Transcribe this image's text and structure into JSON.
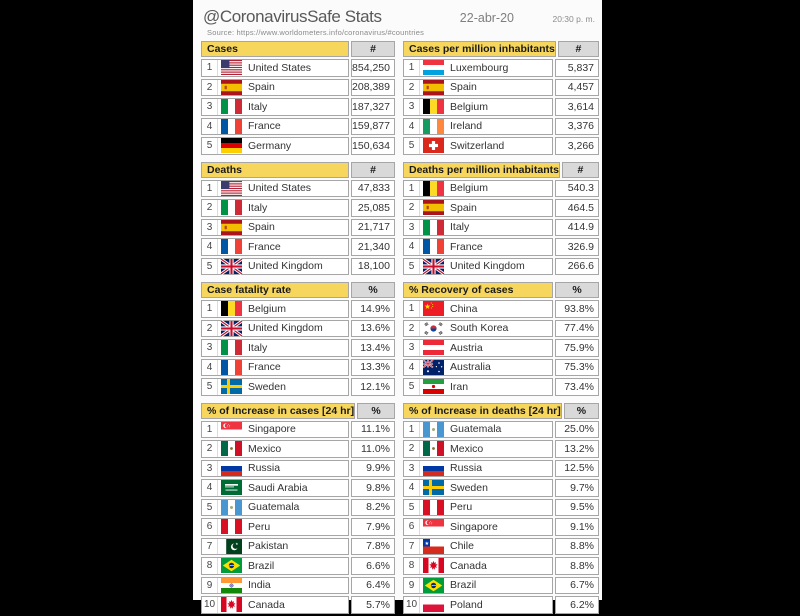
{
  "header": {
    "title": "@CoronavirusSafe Stats",
    "date": "22-abr-20",
    "time": "20:30 p. m.",
    "source": "Source:  https://www.worldometers.info/coronavirus/#countries"
  },
  "colors": {
    "header_yellow": "#F6D65C",
    "header_gray": "#D9D9D9",
    "cell_border": "#A6A6A6",
    "text": "#333333",
    "title_text": "#595959",
    "letterbox": "#000000",
    "page_bg": "#FBFBFB"
  },
  "chart_data": [
    {
      "type": "table",
      "title": "Cases",
      "value_header": "#",
      "columns": [
        "rank",
        "country",
        "value"
      ],
      "rows": [
        {
          "rank": "1",
          "flag": "us",
          "country": "United States",
          "value": "854,250"
        },
        {
          "rank": "2",
          "flag": "es",
          "country": "Spain",
          "value": "208,389"
        },
        {
          "rank": "3",
          "flag": "it",
          "country": "Italy",
          "value": "187,327"
        },
        {
          "rank": "4",
          "flag": "fr",
          "country": "France",
          "value": "159,877"
        },
        {
          "rank": "5",
          "flag": "de",
          "country": "Germany",
          "value": "150,634"
        }
      ]
    },
    {
      "type": "table",
      "title": "Cases per million inhabitants",
      "value_header": "#",
      "columns": [
        "rank",
        "country",
        "value"
      ],
      "rows": [
        {
          "rank": "1",
          "flag": "lu",
          "country": "Luxembourg",
          "value": "5,837"
        },
        {
          "rank": "2",
          "flag": "es",
          "country": "Spain",
          "value": "4,457"
        },
        {
          "rank": "3",
          "flag": "be",
          "country": "Belgium",
          "value": "3,614"
        },
        {
          "rank": "4",
          "flag": "ie",
          "country": "Ireland",
          "value": "3,376"
        },
        {
          "rank": "5",
          "flag": "ch",
          "country": "Switzerland",
          "value": "3,266"
        }
      ]
    },
    {
      "type": "table",
      "title": "Deaths",
      "value_header": "#",
      "columns": [
        "rank",
        "country",
        "value"
      ],
      "rows": [
        {
          "rank": "1",
          "flag": "us",
          "country": "United States",
          "value": "47,833"
        },
        {
          "rank": "2",
          "flag": "it",
          "country": "Italy",
          "value": "25,085"
        },
        {
          "rank": "3",
          "flag": "es",
          "country": "Spain",
          "value": "21,717"
        },
        {
          "rank": "4",
          "flag": "fr",
          "country": "France",
          "value": "21,340"
        },
        {
          "rank": "5",
          "flag": "gb",
          "country": "United Kingdom",
          "value": "18,100"
        }
      ]
    },
    {
      "type": "table",
      "title": "Deaths per million inhabitants",
      "value_header": "#",
      "columns": [
        "rank",
        "country",
        "value"
      ],
      "rows": [
        {
          "rank": "1",
          "flag": "be",
          "country": "Belgium",
          "value": "540.3"
        },
        {
          "rank": "2",
          "flag": "es",
          "country": "Spain",
          "value": "464.5"
        },
        {
          "rank": "3",
          "flag": "it",
          "country": "Italy",
          "value": "414.9"
        },
        {
          "rank": "4",
          "flag": "fr",
          "country": "France",
          "value": "326.9"
        },
        {
          "rank": "5",
          "flag": "gb",
          "country": "United Kingdom",
          "value": "266.6"
        }
      ]
    },
    {
      "type": "table",
      "title": "Case fatality rate",
      "value_header": "%",
      "columns": [
        "rank",
        "country",
        "value"
      ],
      "rows": [
        {
          "rank": "1",
          "flag": "be",
          "country": "Belgium",
          "value": "14.9%"
        },
        {
          "rank": "2",
          "flag": "gb",
          "country": "United Kingdom",
          "value": "13.6%"
        },
        {
          "rank": "3",
          "flag": "it",
          "country": "Italy",
          "value": "13.4%"
        },
        {
          "rank": "4",
          "flag": "fr",
          "country": "France",
          "value": "13.3%"
        },
        {
          "rank": "5",
          "flag": "se",
          "country": "Sweden",
          "value": "12.1%"
        }
      ]
    },
    {
      "type": "table",
      "title": "% Recovery of cases",
      "value_header": "%",
      "columns": [
        "rank",
        "country",
        "value"
      ],
      "rows": [
        {
          "rank": "1",
          "flag": "cn",
          "country": "China",
          "value": "93.8%"
        },
        {
          "rank": "2",
          "flag": "kr",
          "country": "South Korea",
          "value": "77.4%"
        },
        {
          "rank": "3",
          "flag": "at",
          "country": "Austria",
          "value": "75.9%"
        },
        {
          "rank": "4",
          "flag": "au",
          "country": "Australia",
          "value": "75.3%"
        },
        {
          "rank": "5",
          "flag": "ir",
          "country": "Iran",
          "value": "73.4%"
        }
      ]
    },
    {
      "type": "table",
      "title": "% of Increase in cases [24 hr]",
      "value_header": "%",
      "columns": [
        "rank",
        "country",
        "value"
      ],
      "rows": [
        {
          "rank": "1",
          "flag": "sg",
          "country": "Singapore",
          "value": "11.1%"
        },
        {
          "rank": "2",
          "flag": "mx",
          "country": "Mexico",
          "value": "11.0%"
        },
        {
          "rank": "3",
          "flag": "ru",
          "country": "Russia",
          "value": "9.9%"
        },
        {
          "rank": "4",
          "flag": "sa",
          "country": "Saudi Arabia",
          "value": "9.8%"
        },
        {
          "rank": "5",
          "flag": "gt",
          "country": "Guatemala",
          "value": "8.2%"
        },
        {
          "rank": "6",
          "flag": "pe",
          "country": "Peru",
          "value": "7.9%"
        },
        {
          "rank": "7",
          "flag": "pk",
          "country": "Pakistan",
          "value": "7.8%"
        },
        {
          "rank": "8",
          "flag": "br",
          "country": "Brazil",
          "value": "6.6%"
        },
        {
          "rank": "9",
          "flag": "in",
          "country": "India",
          "value": "6.4%"
        },
        {
          "rank": "10",
          "flag": "ca",
          "country": "Canada",
          "value": "5.7%"
        }
      ]
    },
    {
      "type": "table",
      "title": "% of Increase in deaths [24 hr]",
      "value_header": "%",
      "columns": [
        "rank",
        "country",
        "value"
      ],
      "rows": [
        {
          "rank": "1",
          "flag": "gt",
          "country": "Guatemala",
          "value": "25.0%"
        },
        {
          "rank": "2",
          "flag": "mx",
          "country": "Mexico",
          "value": "13.2%"
        },
        {
          "rank": "3",
          "flag": "ru",
          "country": "Russia",
          "value": "12.5%"
        },
        {
          "rank": "4",
          "flag": "se",
          "country": "Sweden",
          "value": "9.7%"
        },
        {
          "rank": "5",
          "flag": "pe",
          "country": "Peru",
          "value": "9.5%"
        },
        {
          "rank": "6",
          "flag": "sg",
          "country": "Singapore",
          "value": "9.1%"
        },
        {
          "rank": "7",
          "flag": "cl",
          "country": "Chile",
          "value": "8.8%"
        },
        {
          "rank": "8",
          "flag": "ca",
          "country": "Canada",
          "value": "8.8%"
        },
        {
          "rank": "9",
          "flag": "br",
          "country": "Brazil",
          "value": "6.7%"
        },
        {
          "rank": "10",
          "flag": "pl",
          "country": "Poland",
          "value": "6.2%"
        }
      ]
    }
  ]
}
